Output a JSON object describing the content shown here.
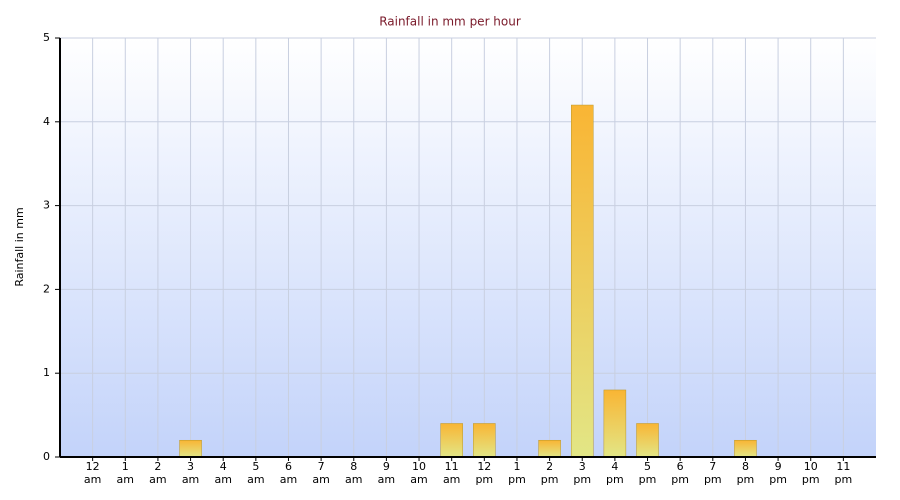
{
  "chart_data": {
    "type": "bar",
    "title": "Rainfall in mm per hour",
    "y_label": "Rainfall in mm",
    "categories": [
      "12 am",
      "1 am",
      "2 am",
      "3 am",
      "4 am",
      "5 am",
      "6 am",
      "7 am",
      "8 am",
      "9 am",
      "10 am",
      "11 am",
      "12 pm",
      "1 pm",
      "2 pm",
      "3 pm",
      "4 pm",
      "5 pm",
      "6 pm",
      "7 pm",
      "8 pm",
      "9 pm",
      "10 pm",
      "11 pm"
    ],
    "values": [
      0,
      0,
      0,
      0.2,
      0,
      0,
      0,
      0,
      0,
      0,
      0,
      0.4,
      0.4,
      0,
      0.2,
      4.2,
      0.8,
      0.4,
      0,
      0,
      0.2,
      0,
      0,
      0
    ],
    "color": "#f5b93a",
    "ylim": [
      0,
      5
    ],
    "yticks": [
      0,
      1,
      2,
      3,
      4,
      5
    ],
    "grid": true
  }
}
